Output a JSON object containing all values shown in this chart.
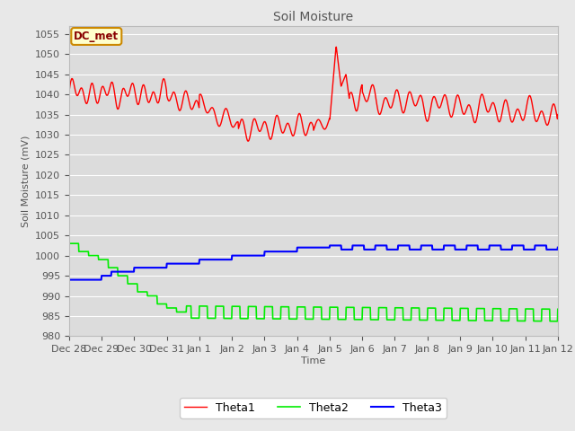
{
  "title": "Soil Moisture",
  "ylabel": "Soil Moisture (mV)",
  "xlabel": "Time",
  "ylim": [
    980,
    1057
  ],
  "yticks": [
    980,
    985,
    990,
    995,
    1000,
    1005,
    1010,
    1015,
    1020,
    1025,
    1030,
    1035,
    1040,
    1045,
    1050,
    1055
  ],
  "fig_bg": "#e8e8e8",
  "plot_bg": "#dcdcdc",
  "grid_color": "#ffffff",
  "annotation_text": "DC_met",
  "annotation_bg": "#ffffcc",
  "annotation_border": "#cc8800",
  "annotation_text_color": "#880000",
  "line_colors": {
    "Theta1": "#ff0000",
    "Theta2": "#00ee00",
    "Theta3": "#0000ff"
  },
  "legend_labels": [
    "Theta1",
    "Theta2",
    "Theta3"
  ],
  "tick_labels": [
    "Dec 28",
    "Dec 29",
    "Dec 30",
    "Dec 31",
    "Jan 1",
    "Jan 2",
    "Jan 3",
    "Jan 4",
    "Jan 5",
    "Jan 6",
    "Jan 7",
    "Jan 8",
    "Jan 9",
    "Jan 10",
    "Jan 11",
    "Jan 12"
  ],
  "tick_positions": [
    0,
    1,
    2,
    3,
    4,
    5,
    6,
    7,
    8,
    9,
    10,
    11,
    12,
    13,
    14,
    15
  ]
}
